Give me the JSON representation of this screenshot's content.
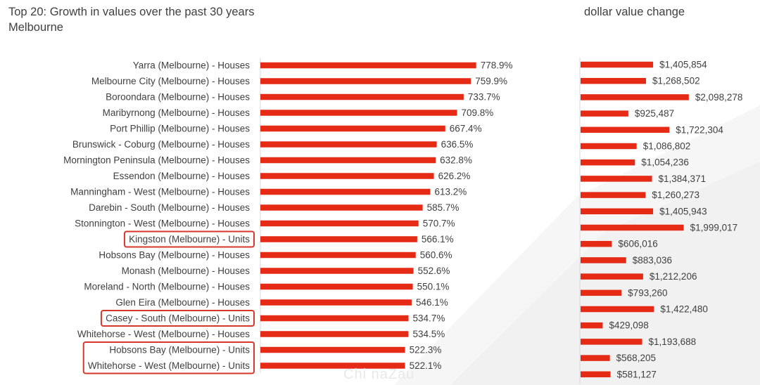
{
  "title_line1": "Top 20:  Growth in values over the past 30 years",
  "title_line2": "Melbourne",
  "right_title": "dollar value change",
  "watermark": "Chi naZau",
  "colors": {
    "bar": "#e52b15",
    "highlight_box": "#d9362a",
    "text": "#404040"
  },
  "chart_data": [
    {
      "type": "bar",
      "orientation": "horizontal",
      "title": "Top 20:  Growth in values over the past 30 years",
      "subtitle": "Melbourne",
      "categories": [
        "Yarra (Melbourne) - Houses",
        "Melbourne City (Melbourne) - Houses",
        "Boroondara (Melbourne) - Houses",
        "Maribyrnong (Melbourne) - Houses",
        "Port Phillip (Melbourne) - Houses",
        "Brunswick - Coburg (Melbourne) - Houses",
        "Mornington Peninsula (Melbourne) - Houses",
        "Essendon (Melbourne) - Houses",
        "Manningham - West (Melbourne) - Houses",
        "Darebin - South (Melbourne) - Houses",
        "Stonnington - West (Melbourne) - Houses",
        "Kingston (Melbourne) - Units",
        "Hobsons Bay (Melbourne) - Houses",
        "Monash (Melbourne) - Houses",
        "Moreland - North (Melbourne) - Houses",
        "Glen Eira (Melbourne) - Houses",
        "Casey - South (Melbourne) - Units",
        "Whitehorse - West (Melbourne) - Houses",
        "Hobsons Bay (Melbourne) - Units",
        "Whitehorse - West (Melbourne) - Units"
      ],
      "values": [
        778.9,
        759.9,
        733.7,
        709.8,
        667.4,
        636.5,
        632.8,
        626.2,
        613.2,
        585.7,
        570.7,
        566.1,
        560.6,
        552.6,
        550.1,
        546.1,
        534.7,
        534.5,
        522.3,
        522.1
      ],
      "value_labels": [
        "778.9%",
        "759.9%",
        "733.7%",
        "709.8%",
        "667.4%",
        "636.5%",
        "632.8%",
        "626.2%",
        "613.2%",
        "585.7%",
        "570.7%",
        "566.1%",
        "560.6%",
        "552.6%",
        "550.1%",
        "546.1%",
        "534.7%",
        "534.5%",
        "522.3%",
        "522.1%"
      ],
      "highlighted": [
        "Kingston (Melbourne) - Units",
        "Casey - South (Melbourne) - Units",
        "Hobsons Bay (Melbourne) - Units",
        "Whitehorse - West (Melbourne) - Units"
      ],
      "xlim": [
        0,
        800
      ],
      "grid": false,
      "legend": "none"
    },
    {
      "type": "bar",
      "orientation": "horizontal",
      "title": "dollar value change",
      "values": [
        1405854,
        1268502,
        2098278,
        925487,
        1722304,
        1086802,
        1054236,
        1384371,
        1260273,
        1405943,
        1999017,
        606016,
        883036,
        1212206,
        793260,
        1422480,
        429098,
        1193688,
        568205,
        581127
      ],
      "value_labels": [
        "$1,405,854",
        "$1,268,502",
        "$2,098,278",
        "$925,487",
        "$1,722,304",
        "$1,086,802",
        "$1,054,236",
        "$1,384,371",
        "$1,260,273",
        "$1,405,943",
        "$1,999,017",
        "$606,016",
        "$883,036",
        "$1,212,206",
        "$793,260",
        "$1,422,480",
        "$429,098",
        "$1,193,688",
        "$568,205",
        "$581,127"
      ],
      "xlim": [
        0,
        2100000
      ],
      "grid": false,
      "legend": "none"
    }
  ]
}
